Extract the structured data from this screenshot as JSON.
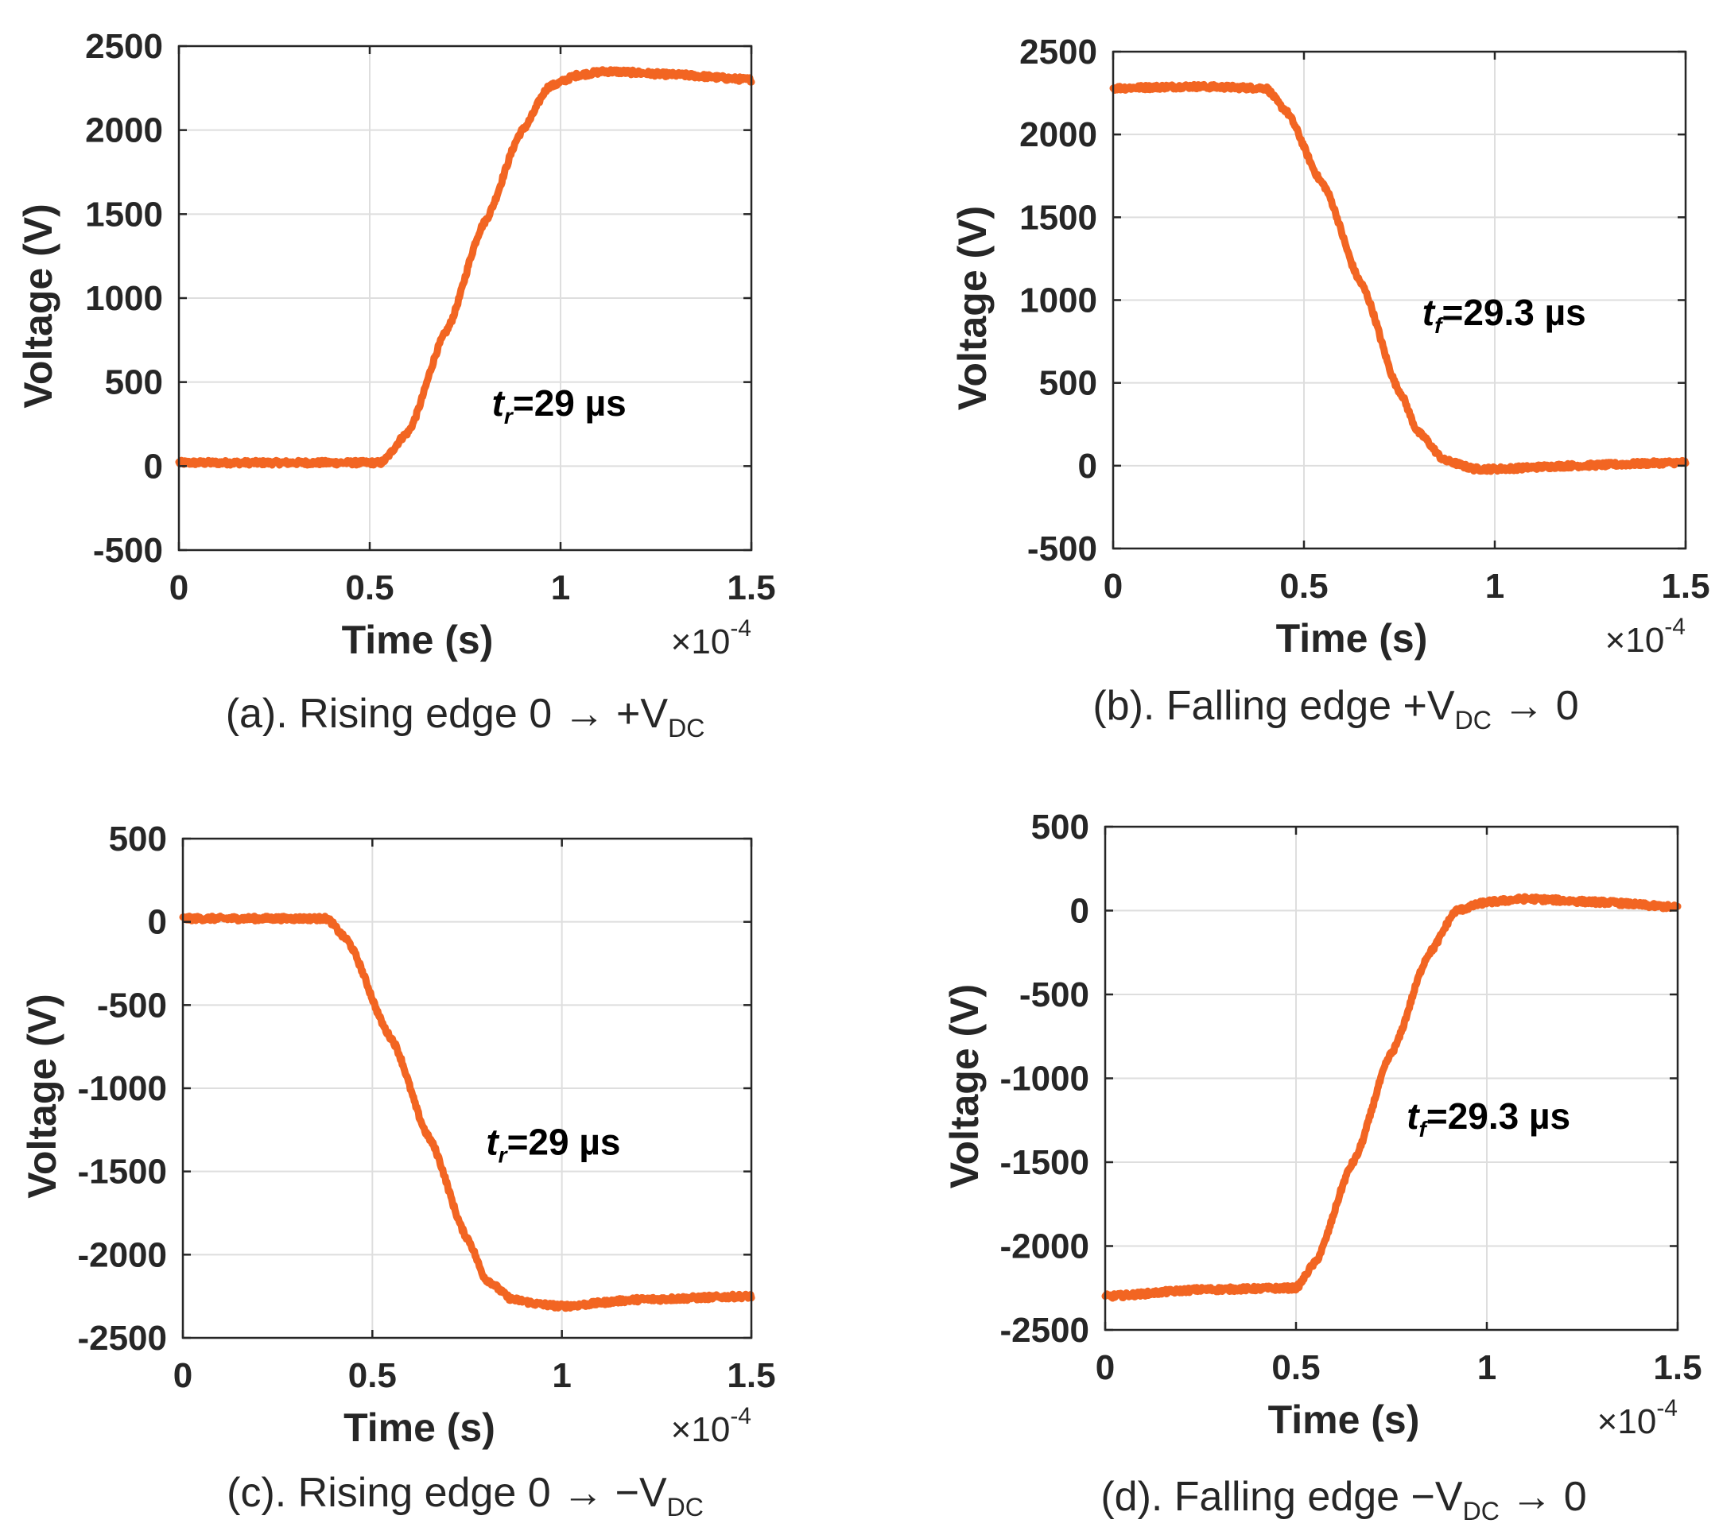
{
  "figure": {
    "line_color": "#f26522",
    "axis_color": "#262626"
  },
  "chart_data": [
    {
      "id": "a",
      "type": "line",
      "series": [
        {
          "name": "voltage",
          "x": [
            0,
            0.53,
            0.6,
            0.7,
            0.8,
            0.9,
            0.97,
            1.05,
            1.12,
            1.3,
            1.5
          ],
          "y": [
            20,
            20,
            200,
            800,
            1450,
            2000,
            2260,
            2330,
            2350,
            2330,
            2300
          ]
        }
      ],
      "xlim": [
        0,
        1.5
      ],
      "ylim": [
        -500,
        2500
      ],
      "xticks": [
        0,
        0.5,
        1,
        1.5
      ],
      "xtick_labels": [
        "0",
        "0.5",
        "1",
        "1.5"
      ],
      "yticks": [
        -500,
        0,
        500,
        1000,
        1500,
        2000,
        2500
      ],
      "ytick_labels": [
        "-500",
        "0",
        "500",
        "1000",
        "1500",
        "2000",
        "2500"
      ],
      "xlabel": "Time (s)",
      "ylabel": "Voltage (V)",
      "x_exponent_base": "×10",
      "x_exponent_power": "-4",
      "annotation": {
        "symbol": "t",
        "subscript": "r",
        "value": "=29 µs",
        "x": 0.82,
        "y": 300
      },
      "caption": {
        "prefix": "(a). Rising edge 0 → +V",
        "subscript": "DC",
        "suffix": ""
      },
      "grid": true
    },
    {
      "id": "b",
      "type": "line",
      "series": [
        {
          "name": "voltage",
          "x": [
            0,
            0.2,
            0.4,
            0.45,
            0.55,
            0.65,
            0.75,
            0.8,
            0.87,
            0.95,
            1.0,
            1.2,
            1.5
          ],
          "y": [
            2280,
            2290,
            2280,
            2150,
            1700,
            1100,
            450,
            200,
            30,
            -20,
            -20,
            0,
            20
          ]
        }
      ],
      "xlim": [
        0,
        1.5
      ],
      "ylim": [
        -500,
        2500
      ],
      "xticks": [
        0,
        0.5,
        1,
        1.5
      ],
      "xtick_labels": [
        "0",
        "0.5",
        "1",
        "1.5"
      ],
      "yticks": [
        -500,
        0,
        500,
        1000,
        1500,
        2000,
        2500
      ],
      "ytick_labels": [
        "-500",
        "0",
        "500",
        "1000",
        "1500",
        "2000",
        "2500"
      ],
      "xlabel": "Time (s)",
      "ylabel": "Voltage (V)",
      "x_exponent_base": "×10",
      "x_exponent_power": "-4",
      "annotation": {
        "symbol": "t",
        "subscript": "f",
        "value": "=29.3 µs",
        "x": 0.81,
        "y": 850
      },
      "caption": {
        "prefix": "(b). Falling edge +V",
        "subscript": "DC",
        "suffix": " → 0"
      },
      "grid": true
    },
    {
      "id": "c",
      "type": "line",
      "series": [
        {
          "name": "voltage",
          "x": [
            0,
            0.2,
            0.38,
            0.43,
            0.55,
            0.65,
            0.75,
            0.8,
            0.87,
            0.95,
            1.0,
            1.2,
            1.5
          ],
          "y": [
            20,
            20,
            20,
            -100,
            -700,
            -1300,
            -1900,
            -2150,
            -2270,
            -2300,
            -2310,
            -2270,
            -2250
          ]
        }
      ],
      "xlim": [
        0,
        1.5
      ],
      "ylim": [
        -2500,
        500
      ],
      "xticks": [
        0,
        0.5,
        1,
        1.5
      ],
      "xtick_labels": [
        "0",
        "0.5",
        "1",
        "1.5"
      ],
      "yticks": [
        -2500,
        -2000,
        -1500,
        -1000,
        -500,
        0,
        500
      ],
      "ytick_labels": [
        "-2500",
        "-2000",
        "-1500",
        "-1000",
        "-500",
        "0",
        "500"
      ],
      "xlabel": "Time (s)",
      "ylabel": "Voltage (V)",
      "x_exponent_base": "×10",
      "x_exponent_power": "-4",
      "annotation": {
        "symbol": "t",
        "subscript": "r",
        "value": "=29 µs",
        "x": 0.8,
        "y": -1400
      },
      "caption": {
        "prefix": "(c). Rising edge 0 → −V",
        "subscript": "DC",
        "suffix": ""
      },
      "grid": true
    },
    {
      "id": "d",
      "type": "line",
      "series": [
        {
          "name": "voltage",
          "x": [
            0,
            0.25,
            0.5,
            0.55,
            0.65,
            0.75,
            0.85,
            0.92,
            1.0,
            1.1,
            1.3,
            1.5
          ],
          "y": [
            -2300,
            -2260,
            -2250,
            -2100,
            -1500,
            -850,
            -250,
            0,
            50,
            70,
            50,
            20
          ]
        }
      ],
      "xlim": [
        0,
        1.5
      ],
      "ylim": [
        -2500,
        500
      ],
      "xticks": [
        0,
        0.5,
        1,
        1.5
      ],
      "xtick_labels": [
        "0",
        "0.5",
        "1",
        "1.5"
      ],
      "yticks": [
        -2500,
        -2000,
        -1500,
        -1000,
        -500,
        0,
        500
      ],
      "ytick_labels": [
        "-2500",
        "-2000",
        "-1500",
        "-1000",
        "-500",
        "0",
        "500"
      ],
      "xlabel": "Time (s)",
      "ylabel": "Voltage (V)",
      "x_exponent_base": "×10",
      "x_exponent_power": "-4",
      "annotation": {
        "symbol": "t",
        "subscript": "f",
        "value": "=29.3 µs",
        "x": 0.79,
        "y": -1300
      },
      "caption": {
        "prefix": "(d). Falling edge −V",
        "subscript": "DC",
        "suffix": " → 0"
      },
      "grid": true
    }
  ]
}
